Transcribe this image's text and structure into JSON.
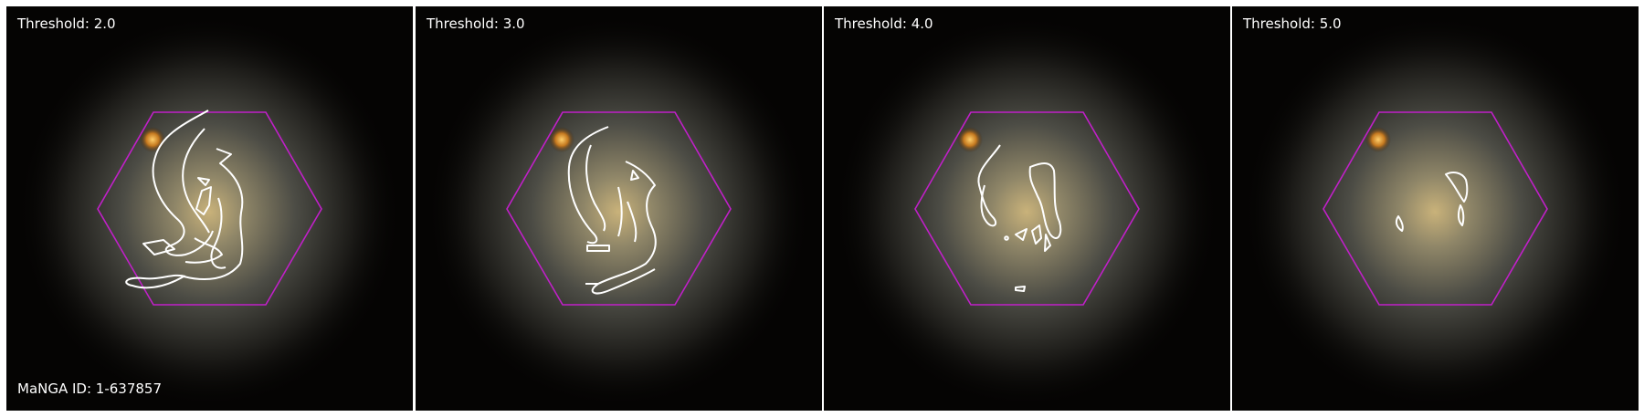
{
  "figure": {
    "manga_id_label": "MaNGA ID: 1-637857",
    "panels": [
      {
        "threshold_label": "Threshold: 2.0"
      },
      {
        "threshold_label": "Threshold: 3.0"
      },
      {
        "threshold_label": "Threshold: 4.0"
      },
      {
        "threshold_label": "Threshold: 5.0"
      }
    ],
    "colors": {
      "hexagon_outline": "#c020c8",
      "contour_lines": "#ffffff",
      "label_text": "#ffffff",
      "background": "#050403"
    }
  }
}
